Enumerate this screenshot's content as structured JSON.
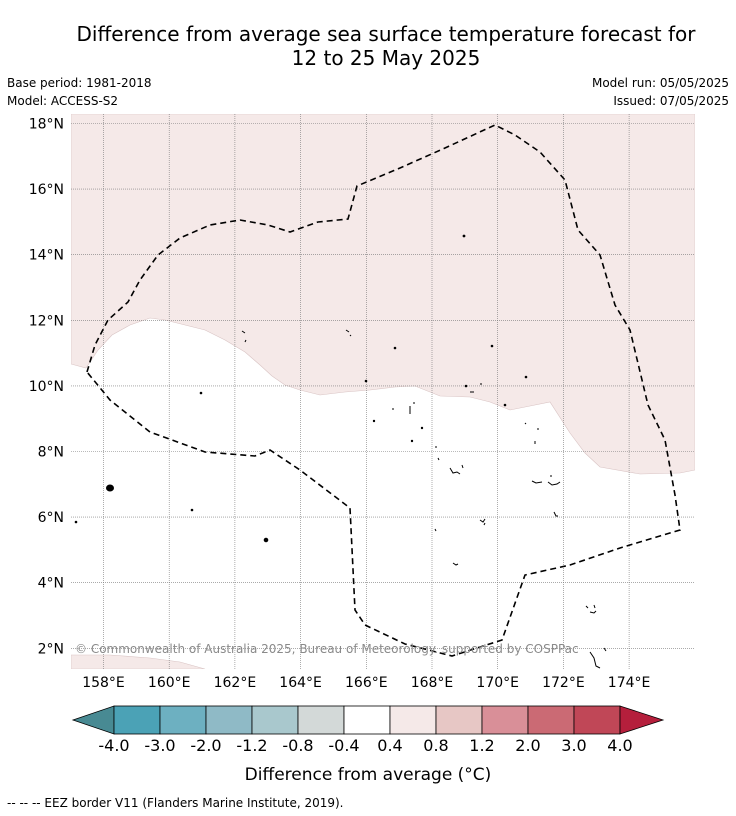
{
  "title_line1": "Difference from average sea surface temperature forecast for",
  "title_line2": "12 to 25 May 2025",
  "base_period": "Base period: 1981-2018",
  "model": "Model: ACCESS-S2",
  "model_run": "Model run: 05/05/2025",
  "issued": "Issued: 07/05/2025",
  "copyright": "© Commonwealth of Australia 2025, Bureau of Meteorology. supported by COSPPac",
  "lat_ticks": [
    "18°N",
    "16°N",
    "14°N",
    "12°N",
    "10°N",
    "8°N",
    "6°N",
    "4°N",
    "2°N"
  ],
  "lon_ticks": [
    "158°E",
    "160°E",
    "162°E",
    "164°E",
    "166°E",
    "168°E",
    "170°E",
    "172°E",
    "174°E"
  ],
  "colorbar": {
    "label": "Difference from average (°C)",
    "ticks": [
      "-4.0",
      "-3.0",
      "-2.0",
      "-1.2",
      "-0.8",
      "-0.4",
      "0.4",
      "0.8",
      "1.2",
      "2.0",
      "3.0",
      "4.0"
    ],
    "colors": [
      "#488a93",
      "#4ba2b6",
      "#6db0c1",
      "#8fbac6",
      "#a9c8cd",
      "#d3d9d8",
      "#ffffff",
      "#f5e9e8",
      "#e7c7c5",
      "#d98f98",
      "#cb6a74",
      "#c04757",
      "#b51f3c"
    ]
  },
  "map_colors": {
    "shade_04_08": "#f5e9e8",
    "land": "#000000"
  },
  "legend_line": "--  --  -- EEZ border V11 (Flanders Marine Institute, 2019)."
}
